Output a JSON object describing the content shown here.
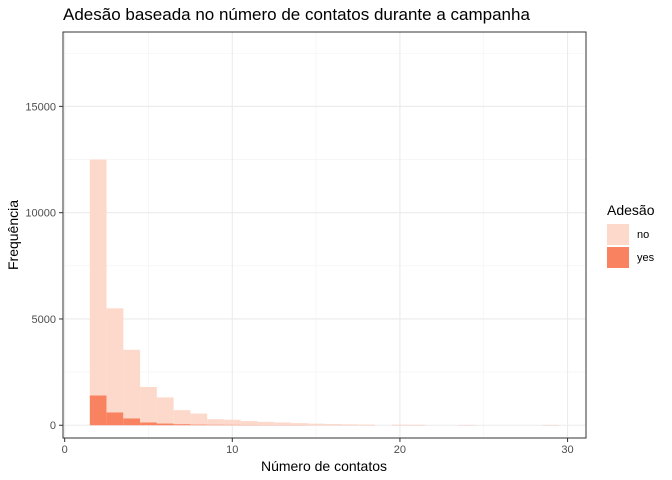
{
  "chart_data": {
    "type": "bar",
    "title": "Adesão baseada no número de contatos durante a campanha",
    "xlabel": "Número de contatos",
    "ylabel": "Frequência",
    "xlim": [
      -0.1,
      31.1
    ],
    "ylim": [
      -600,
      18500
    ],
    "x_ticks": [
      0,
      10,
      20,
      30
    ],
    "x_tick_labels": [
      "0",
      "10",
      "20",
      "30"
    ],
    "y_ticks": [
      0,
      5000,
      10000,
      15000
    ],
    "y_tick_labels": [
      "0",
      "5000",
      "10000",
      "15000"
    ],
    "grid": true,
    "stacked": true,
    "bin_width": 1,
    "legend": {
      "title": "Adesão",
      "position": "right",
      "entries": [
        "no",
        "yes"
      ]
    },
    "bins": [
      2,
      3,
      4,
      5,
      6,
      7,
      8,
      9,
      10,
      11,
      12,
      13,
      14,
      15,
      16,
      17,
      18,
      20,
      21,
      24,
      29
    ],
    "series": [
      {
        "name": "no",
        "color": "#fdd9cb",
        "values": [
          11100,
          4900,
          3230,
          1670,
          1230,
          660,
          520,
          260,
          240,
          180,
          150,
          120,
          90,
          70,
          55,
          40,
          30,
          25,
          20,
          10,
          10
        ]
      },
      {
        "name": "yes",
        "color": "#f98361",
        "values": [
          1400,
          600,
          320,
          130,
          80,
          50,
          30,
          25,
          20,
          15,
          10,
          10,
          10,
          5,
          5,
          5,
          5,
          5,
          5,
          5,
          5
        ]
      }
    ]
  }
}
